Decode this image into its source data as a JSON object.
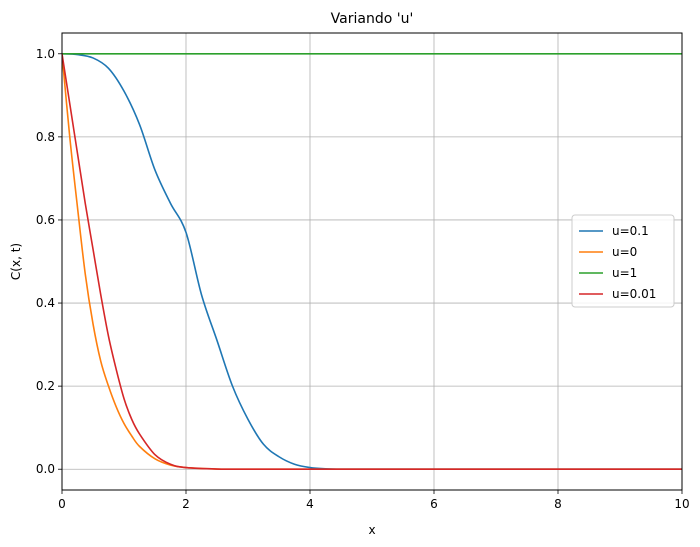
{
  "chart_data": {
    "type": "line",
    "title": "Variando 'u'",
    "xlabel": "x",
    "ylabel": "C(x, t)",
    "xlim": [
      0,
      10
    ],
    "ylim": [
      -0.05,
      1.05
    ],
    "xticks": [
      0,
      2,
      4,
      6,
      8,
      10
    ],
    "xtick_labels": [
      "0",
      "2",
      "4",
      "6",
      "8",
      "10"
    ],
    "yticks": [
      0.0,
      0.2,
      0.4,
      0.6,
      0.8,
      1.0
    ],
    "ytick_labels": [
      "0.0",
      "0.2",
      "0.4",
      "0.6",
      "0.8",
      "1.0"
    ],
    "grid": true,
    "legend_position": "center-right",
    "series": [
      {
        "name": "u=0.1",
        "color": "#1f77b4",
        "x": [
          0,
          0.25,
          0.5,
          0.75,
          1.0,
          1.25,
          1.5,
          1.75,
          2.0,
          2.25,
          2.5,
          2.75,
          3.0,
          3.25,
          3.5,
          3.75,
          4.0,
          4.25,
          4.5,
          5.0,
          6.0,
          8.0,
          10.0
        ],
        "y": [
          1.0,
          0.998,
          0.99,
          0.965,
          0.91,
          0.83,
          0.72,
          0.64,
          0.57,
          0.42,
          0.31,
          0.2,
          0.12,
          0.06,
          0.03,
          0.012,
          0.004,
          0.001,
          0.0,
          0.0,
          0.0,
          0.0,
          0.0
        ]
      },
      {
        "name": "u=0",
        "color": "#ff7f0e",
        "x": [
          0,
          0.125,
          0.25,
          0.375,
          0.5,
          0.625,
          0.75,
          0.875,
          1.0,
          1.125,
          1.25,
          1.5,
          1.75,
          2.0,
          2.5,
          3.0,
          4.0,
          6.0,
          8.0,
          10.0
        ],
        "y": [
          1.0,
          0.8,
          0.63,
          0.47,
          0.35,
          0.26,
          0.2,
          0.15,
          0.11,
          0.08,
          0.055,
          0.025,
          0.01,
          0.004,
          0.0005,
          0.0,
          0.0,
          0.0,
          0.0,
          0.0
        ]
      },
      {
        "name": "u=1",
        "color": "#2ca02c",
        "x": [
          0,
          10
        ],
        "y": [
          1.0,
          1.0
        ]
      },
      {
        "name": "u=0.01",
        "color": "#d62728",
        "x": [
          0,
          0.125,
          0.25,
          0.375,
          0.5,
          0.625,
          0.75,
          0.875,
          1.0,
          1.125,
          1.25,
          1.5,
          1.75,
          2.0,
          2.5,
          3.0,
          4.0,
          6.0,
          8.0,
          10.0
        ],
        "y": [
          1.0,
          0.88,
          0.76,
          0.64,
          0.53,
          0.42,
          0.32,
          0.24,
          0.17,
          0.12,
          0.085,
          0.035,
          0.012,
          0.004,
          0.0005,
          0.0,
          0.0,
          0.0,
          0.0,
          0.0
        ]
      }
    ]
  }
}
